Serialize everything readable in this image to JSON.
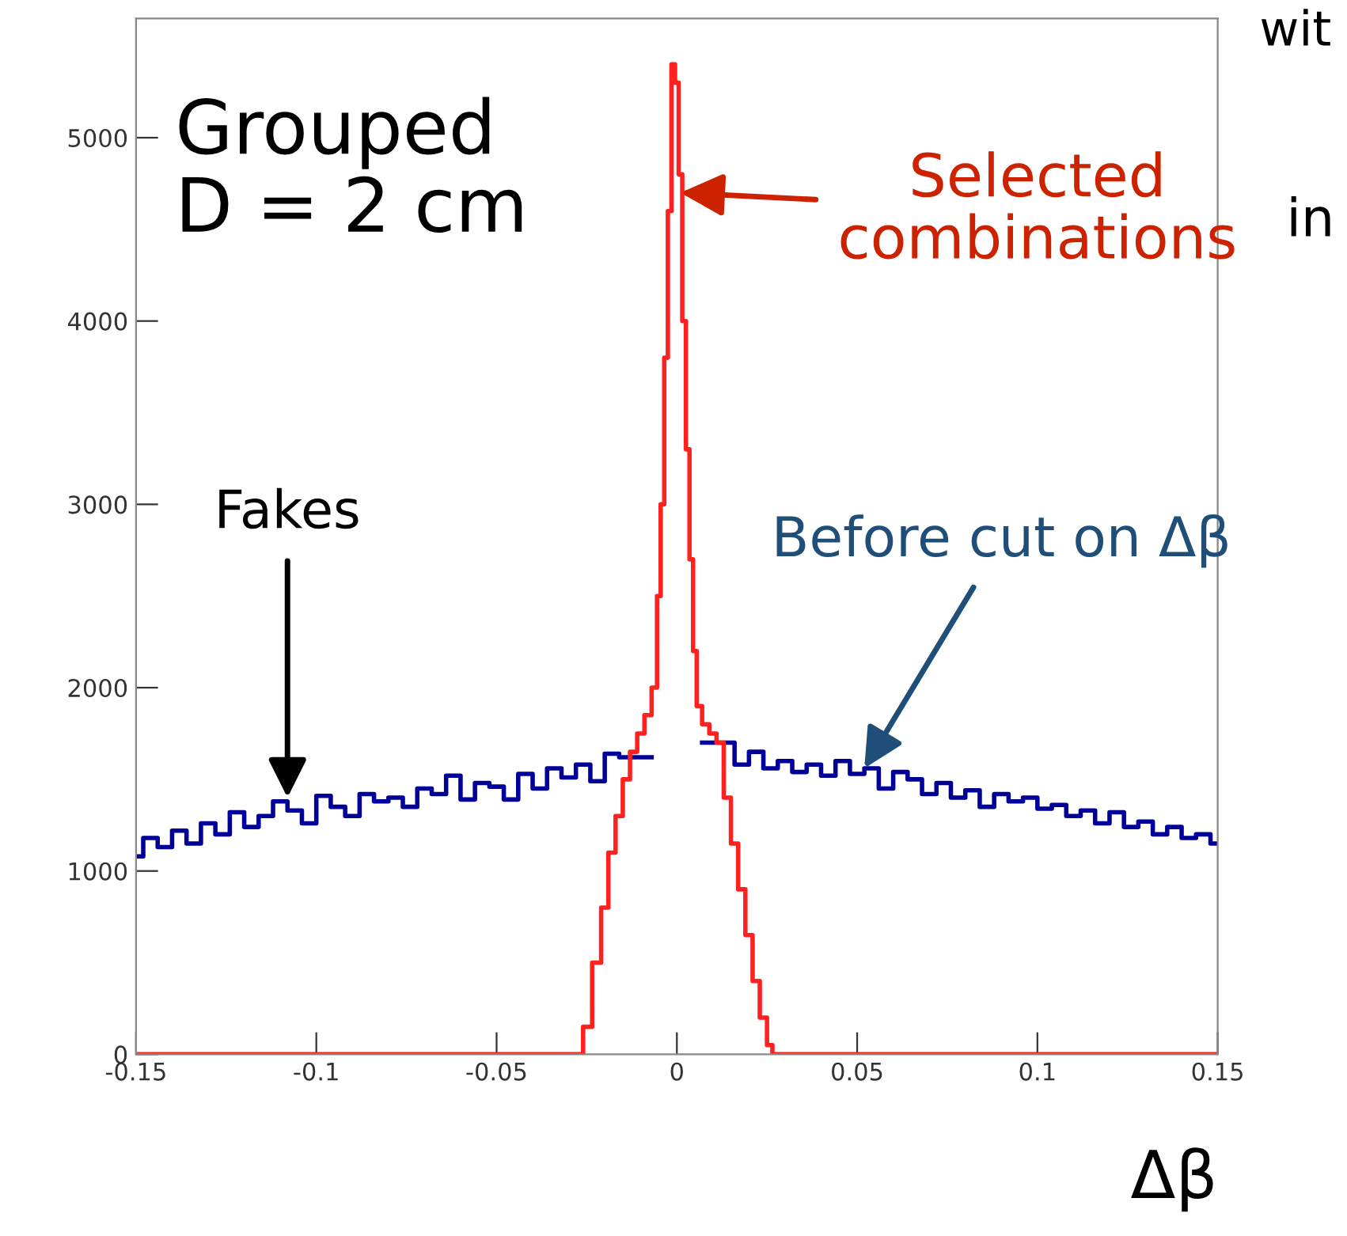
{
  "chart_data": {
    "type": "step",
    "xlabel": "Δβ",
    "xlim": [
      -0.15,
      0.15
    ],
    "xticks": [
      -0.15,
      -0.1,
      -0.05,
      0,
      0.05,
      0.1,
      0.15
    ],
    "ylim": [
      0,
      5650
    ],
    "yticks": [
      0,
      1000,
      2000,
      3000,
      4000,
      5000
    ],
    "grid": false,
    "legend": false,
    "series": [
      {
        "color": "#000099",
        "x": [
          -0.15,
          -0.146,
          -0.142,
          -0.138,
          -0.134,
          -0.13,
          -0.126,
          -0.122,
          -0.118,
          -0.114,
          -0.11,
          -0.106,
          -0.102,
          -0.098,
          -0.094,
          -0.09,
          -0.086,
          -0.082,
          -0.078,
          -0.074,
          -0.07,
          -0.066,
          -0.062,
          -0.058,
          -0.054,
          -0.05,
          -0.046,
          -0.042,
          -0.038,
          -0.034,
          -0.03,
          -0.026,
          -0.022,
          -0.018,
          -0.014,
          0,
          0.014,
          0.018,
          0.022,
          0.026,
          0.03,
          0.034,
          0.038,
          0.042,
          0.046,
          0.05,
          0.054,
          0.058,
          0.062,
          0.066,
          0.07,
          0.074,
          0.078,
          0.082,
          0.086,
          0.09,
          0.094,
          0.098,
          0.102,
          0.106,
          0.11,
          0.114,
          0.118,
          0.122,
          0.126,
          0.13,
          0.134,
          0.138,
          0.142,
          0.146,
          0.15
        ],
        "values": [
          1080,
          1180,
          1130,
          1220,
          1150,
          1260,
          1200,
          1320,
          1240,
          1300,
          1380,
          1330,
          1260,
          1410,
          1350,
          1300,
          1420,
          1380,
          1400,
          1350,
          1450,
          1420,
          1520,
          1390,
          1480,
          1460,
          1390,
          1530,
          1450,
          1560,
          1510,
          1580,
          1490,
          1640,
          1620,
          null,
          1700,
          1580,
          1650,
          1560,
          1600,
          1540,
          1580,
          1520,
          1600,
          1530,
          1560,
          1450,
          1540,
          1500,
          1420,
          1480,
          1400,
          1440,
          1350,
          1420,
          1380,
          1400,
          1340,
          1360,
          1300,
          1330,
          1260,
          1320,
          1240,
          1270,
          1200,
          1240,
          1180,
          1200,
          1150
        ]
      },
      {
        "color": "#ff2020",
        "x": [
          -0.15,
          -0.027,
          -0.025,
          -0.022,
          -0.02,
          -0.018,
          -0.016,
          -0.014,
          -0.012,
          -0.01,
          -0.008,
          -0.006,
          -0.005,
          -0.004,
          -0.003,
          -0.002,
          -0.001,
          0,
          0.001,
          0.002,
          0.003,
          0.004,
          0.005,
          0.006,
          0.008,
          0.01,
          0.012,
          0.014,
          0.016,
          0.018,
          0.02,
          0.022,
          0.024,
          0.026,
          0.027,
          0.15
        ],
        "values": [
          0,
          0,
          150,
          500,
          800,
          1100,
          1300,
          1500,
          1650,
          1750,
          1850,
          2000,
          2500,
          3000,
          3800,
          4600,
          5400,
          5300,
          4800,
          4000,
          3300,
          2700,
          2200,
          1900,
          1800,
          1750,
          1700,
          1400,
          1150,
          900,
          650,
          400,
          200,
          50,
          0,
          0
        ]
      }
    ],
    "annotations": [
      "Grouped\nD = 2 cm",
      {
        "text": "Selected\ncombinations",
        "x": 0.001,
        "y": 4700
      },
      {
        "text": "Fakes",
        "x": -0.108,
        "y": 1400
      },
      {
        "text": "Before cut on Δβ",
        "x": 0.052,
        "y": 1560
      },
      "wit",
      "in"
    ]
  }
}
